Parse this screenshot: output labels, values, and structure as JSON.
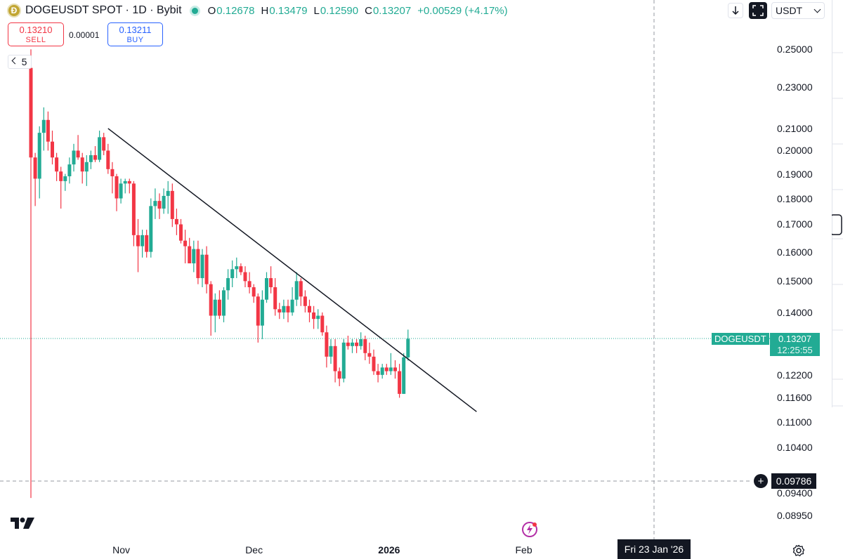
{
  "header": {
    "logo_glyph": "Ð",
    "title": "DOGEUSDT SPOT · 1D · Bybit",
    "ohlc": [
      {
        "label": "O",
        "value": "0.12678"
      },
      {
        "label": "H",
        "value": "0.13479"
      },
      {
        "label": "L",
        "value": "0.12590"
      },
      {
        "label": "C",
        "value": "0.13207"
      }
    ],
    "change": "+0.00529 (+4.17%)"
  },
  "trade": {
    "sell_price": "0.13210",
    "sell_label": "SELL",
    "spread": "0.00001",
    "buy_price": "0.13211",
    "buy_label": "BUY"
  },
  "interval_toggle": "5",
  "toolbar": {
    "currency": "USDT"
  },
  "labels": {
    "symbol": "DOGEUSDT",
    "last_price": "0.13207",
    "countdown": "12:25:55",
    "crosshair_price": "0.09786",
    "crosshair_date": "Fri 23 Jan '26"
  },
  "colors": {
    "up": "#22ab94",
    "down": "#f23645",
    "trendline": "#131722"
  },
  "chart_data": {
    "type": "candlestick",
    "title": "DOGEUSDT SPOT · 1D · Bybit",
    "y_scale": "log",
    "ylim": [
      0.0865,
      0.262
    ],
    "y_ticks": [
      "0.25000",
      "0.23000",
      "0.21000",
      "0.20000",
      "0.19000",
      "0.18000",
      "0.17000",
      "0.16000",
      "0.15000",
      "0.14000",
      "0.12200",
      "0.11600",
      "0.11000",
      "0.10400",
      "0.09400",
      "0.08950"
    ],
    "x_ticks": [
      "Nov",
      "Dec",
      "2026",
      "Feb"
    ],
    "x_tick_index": [
      21,
      52,
      83,
      115
    ],
    "last_price": 0.13207,
    "crosshair_price": 0.09786,
    "candles": [
      {
        "o": 0.24,
        "h": 0.25,
        "l": 0.093,
        "c": 0.197
      },
      {
        "o": 0.197,
        "h": 0.199,
        "l": 0.177,
        "c": 0.188
      },
      {
        "o": 0.188,
        "h": 0.211,
        "l": 0.18,
        "c": 0.208
      },
      {
        "o": 0.208,
        "h": 0.22,
        "l": 0.2,
        "c": 0.214
      },
      {
        "o": 0.214,
        "h": 0.218,
        "l": 0.2,
        "c": 0.204
      },
      {
        "o": 0.204,
        "h": 0.209,
        "l": 0.194,
        "c": 0.197
      },
      {
        "o": 0.197,
        "h": 0.199,
        "l": 0.187,
        "c": 0.191
      },
      {
        "o": 0.191,
        "h": 0.193,
        "l": 0.176,
        "c": 0.187
      },
      {
        "o": 0.187,
        "h": 0.19,
        "l": 0.183,
        "c": 0.189
      },
      {
        "o": 0.189,
        "h": 0.197,
        "l": 0.186,
        "c": 0.194
      },
      {
        "o": 0.194,
        "h": 0.203,
        "l": 0.191,
        "c": 0.2
      },
      {
        "o": 0.2,
        "h": 0.207,
        "l": 0.196,
        "c": 0.197
      },
      {
        "o": 0.197,
        "h": 0.199,
        "l": 0.186,
        "c": 0.191
      },
      {
        "o": 0.191,
        "h": 0.198,
        "l": 0.185,
        "c": 0.195
      },
      {
        "o": 0.195,
        "h": 0.2,
        "l": 0.192,
        "c": 0.198
      },
      {
        "o": 0.198,
        "h": 0.202,
        "l": 0.195,
        "c": 0.196
      },
      {
        "o": 0.196,
        "h": 0.209,
        "l": 0.195,
        "c": 0.206
      },
      {
        "o": 0.206,
        "h": 0.208,
        "l": 0.198,
        "c": 0.2
      },
      {
        "o": 0.2,
        "h": 0.203,
        "l": 0.19,
        "c": 0.192
      },
      {
        "o": 0.192,
        "h": 0.195,
        "l": 0.182,
        "c": 0.189
      },
      {
        "o": 0.189,
        "h": 0.19,
        "l": 0.175,
        "c": 0.18
      },
      {
        "o": 0.18,
        "h": 0.188,
        "l": 0.178,
        "c": 0.186
      },
      {
        "o": 0.186,
        "h": 0.188,
        "l": 0.182,
        "c": 0.187
      },
      {
        "o": 0.187,
        "h": 0.188,
        "l": 0.182,
        "c": 0.186
      },
      {
        "o": 0.186,
        "h": 0.187,
        "l": 0.162,
        "c": 0.166
      },
      {
        "o": 0.166,
        "h": 0.172,
        "l": 0.153,
        "c": 0.162
      },
      {
        "o": 0.162,
        "h": 0.168,
        "l": 0.158,
        "c": 0.166
      },
      {
        "o": 0.166,
        "h": 0.168,
        "l": 0.158,
        "c": 0.16
      },
      {
        "o": 0.16,
        "h": 0.18,
        "l": 0.158,
        "c": 0.177
      },
      {
        "o": 0.177,
        "h": 0.184,
        "l": 0.172,
        "c": 0.179
      },
      {
        "o": 0.179,
        "h": 0.182,
        "l": 0.172,
        "c": 0.176
      },
      {
        "o": 0.176,
        "h": 0.184,
        "l": 0.174,
        "c": 0.181
      },
      {
        "o": 0.181,
        "h": 0.187,
        "l": 0.174,
        "c": 0.183
      },
      {
        "o": 0.183,
        "h": 0.186,
        "l": 0.169,
        "c": 0.172
      },
      {
        "o": 0.172,
        "h": 0.176,
        "l": 0.166,
        "c": 0.17
      },
      {
        "o": 0.17,
        "h": 0.172,
        "l": 0.163,
        "c": 0.164
      },
      {
        "o": 0.164,
        "h": 0.168,
        "l": 0.156,
        "c": 0.162
      },
      {
        "o": 0.162,
        "h": 0.165,
        "l": 0.156,
        "c": 0.156
      },
      {
        "o": 0.156,
        "h": 0.164,
        "l": 0.153,
        "c": 0.161
      },
      {
        "o": 0.161,
        "h": 0.164,
        "l": 0.149,
        "c": 0.151
      },
      {
        "o": 0.151,
        "h": 0.161,
        "l": 0.148,
        "c": 0.159
      },
      {
        "o": 0.159,
        "h": 0.162,
        "l": 0.146,
        "c": 0.149
      },
      {
        "o": 0.149,
        "h": 0.15,
        "l": 0.133,
        "c": 0.139
      },
      {
        "o": 0.139,
        "h": 0.146,
        "l": 0.134,
        "c": 0.144
      },
      {
        "o": 0.144,
        "h": 0.147,
        "l": 0.138,
        "c": 0.139
      },
      {
        "o": 0.139,
        "h": 0.148,
        "l": 0.137,
        "c": 0.147
      },
      {
        "o": 0.147,
        "h": 0.154,
        "l": 0.144,
        "c": 0.151
      },
      {
        "o": 0.151,
        "h": 0.157,
        "l": 0.148,
        "c": 0.154
      },
      {
        "o": 0.154,
        "h": 0.158,
        "l": 0.151,
        "c": 0.155
      },
      {
        "o": 0.155,
        "h": 0.156,
        "l": 0.152,
        "c": 0.153
      },
      {
        "o": 0.153,
        "h": 0.155,
        "l": 0.148,
        "c": 0.15
      },
      {
        "o": 0.15,
        "h": 0.153,
        "l": 0.146,
        "c": 0.148
      },
      {
        "o": 0.148,
        "h": 0.149,
        "l": 0.143,
        "c": 0.145
      },
      {
        "o": 0.145,
        "h": 0.146,
        "l": 0.131,
        "c": 0.136
      },
      {
        "o": 0.136,
        "h": 0.147,
        "l": 0.132,
        "c": 0.144
      },
      {
        "o": 0.144,
        "h": 0.153,
        "l": 0.143,
        "c": 0.151
      },
      {
        "o": 0.151,
        "h": 0.155,
        "l": 0.146,
        "c": 0.148
      },
      {
        "o": 0.148,
        "h": 0.151,
        "l": 0.139,
        "c": 0.141
      },
      {
        "o": 0.141,
        "h": 0.143,
        "l": 0.138,
        "c": 0.14
      },
      {
        "o": 0.14,
        "h": 0.144,
        "l": 0.138,
        "c": 0.142
      },
      {
        "o": 0.142,
        "h": 0.144,
        "l": 0.137,
        "c": 0.14
      },
      {
        "o": 0.14,
        "h": 0.148,
        "l": 0.139,
        "c": 0.144
      },
      {
        "o": 0.144,
        "h": 0.153,
        "l": 0.142,
        "c": 0.15
      },
      {
        "o": 0.15,
        "h": 0.151,
        "l": 0.142,
        "c": 0.145
      },
      {
        "o": 0.145,
        "h": 0.147,
        "l": 0.14,
        "c": 0.142
      },
      {
        "o": 0.142,
        "h": 0.144,
        "l": 0.137,
        "c": 0.14
      },
      {
        "o": 0.14,
        "h": 0.142,
        "l": 0.135,
        "c": 0.138
      },
      {
        "o": 0.138,
        "h": 0.141,
        "l": 0.135,
        "c": 0.139
      },
      {
        "o": 0.139,
        "h": 0.14,
        "l": 0.133,
        "c": 0.134
      },
      {
        "o": 0.134,
        "h": 0.136,
        "l": 0.124,
        "c": 0.127
      },
      {
        "o": 0.127,
        "h": 0.132,
        "l": 0.125,
        "c": 0.13
      },
      {
        "o": 0.13,
        "h": 0.132,
        "l": 0.12,
        "c": 0.123
      },
      {
        "o": 0.123,
        "h": 0.124,
        "l": 0.119,
        "c": 0.121
      },
      {
        "o": 0.121,
        "h": 0.132,
        "l": 0.12,
        "c": 0.131
      },
      {
        "o": 0.131,
        "h": 0.133,
        "l": 0.129,
        "c": 0.13
      },
      {
        "o": 0.13,
        "h": 0.132,
        "l": 0.128,
        "c": 0.131
      },
      {
        "o": 0.131,
        "h": 0.132,
        "l": 0.128,
        "c": 0.13
      },
      {
        "o": 0.13,
        "h": 0.134,
        "l": 0.129,
        "c": 0.132
      },
      {
        "o": 0.132,
        "h": 0.133,
        "l": 0.126,
        "c": 0.128
      },
      {
        "o": 0.128,
        "h": 0.131,
        "l": 0.125,
        "c": 0.127
      },
      {
        "o": 0.127,
        "h": 0.129,
        "l": 0.122,
        "c": 0.123
      },
      {
        "o": 0.123,
        "h": 0.125,
        "l": 0.12,
        "c": 0.122
      },
      {
        "o": 0.122,
        "h": 0.125,
        "l": 0.121,
        "c": 0.124
      },
      {
        "o": 0.124,
        "h": 0.125,
        "l": 0.122,
        "c": 0.123
      },
      {
        "o": 0.123,
        "h": 0.128,
        "l": 0.122,
        "c": 0.124
      },
      {
        "o": 0.124,
        "h": 0.126,
        "l": 0.121,
        "c": 0.123
      },
      {
        "o": 0.123,
        "h": 0.125,
        "l": 0.116,
        "c": 0.117
      },
      {
        "o": 0.117,
        "h": 0.128,
        "l": 0.117,
        "c": 0.1268
      },
      {
        "o": 0.1268,
        "h": 0.1348,
        "l": 0.1259,
        "c": 0.13207
      }
    ],
    "trendline": [
      {
        "index": 18,
        "price": 0.21
      },
      {
        "index": 104,
        "price": 0.1125
      }
    ]
  }
}
